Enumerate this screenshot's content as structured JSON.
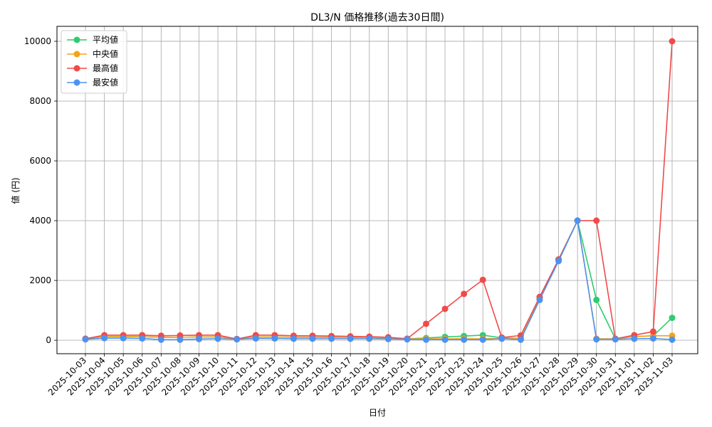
{
  "chart_data": {
    "type": "line",
    "title": "DL3/N 価格推移(過去30日間)",
    "xlabel": "日付",
    "ylabel": "値 (円)",
    "ylim": [
      -450,
      10500
    ],
    "yticks": [
      0,
      2000,
      4000,
      6000,
      8000,
      10000
    ],
    "grid": true,
    "legend_position": "top-left",
    "categories": [
      "2025-10-03",
      "2025-10-04",
      "2025-10-05",
      "2025-10-06",
      "2025-10-07",
      "2025-10-08",
      "2025-10-09",
      "2025-10-10",
      "2025-10-11",
      "2025-10-12",
      "2025-10-13",
      "2025-10-14",
      "2025-10-15",
      "2025-10-16",
      "2025-10-17",
      "2025-10-18",
      "2025-10-19",
      "2025-10-20",
      "2025-10-21",
      "2025-10-22",
      "2025-10-23",
      "2025-10-24",
      "2025-10-25",
      "2025-10-26",
      "2025-10-27",
      "2025-10-28",
      "2025-10-29",
      "2025-10-30",
      "2025-10-31",
      "2025-11-01",
      "2025-11-02",
      "2025-11-03"
    ],
    "series": [
      {
        "name": "平均値",
        "color": "#2ecc71",
        "values": [
          50,
          120,
          120,
          120,
          100,
          100,
          110,
          110,
          40,
          110,
          110,
          100,
          100,
          95,
          90,
          90,
          80,
          50,
          75,
          110,
          140,
          170,
          80,
          60,
          1380,
          2700,
          4000,
          1350,
          50,
          120,
          150,
          750
        ]
      },
      {
        "name": "中央値",
        "color": "#f5a31a",
        "values": [
          50,
          120,
          120,
          120,
          100,
          100,
          110,
          110,
          40,
          110,
          110,
          100,
          100,
          95,
          90,
          90,
          80,
          50,
          50,
          50,
          50,
          50,
          60,
          60,
          1380,
          2700,
          4000,
          50,
          50,
          120,
          150,
          150
        ]
      },
      {
        "name": "最高値",
        "color": "#ef4b4b",
        "values": [
          50,
          170,
          170,
          170,
          150,
          160,
          170,
          170,
          40,
          170,
          170,
          150,
          150,
          140,
          130,
          120,
          100,
          50,
          550,
          1050,
          1550,
          2020,
          90,
          160,
          1450,
          2700,
          4000,
          4000,
          50,
          170,
          290,
          10000
        ]
      },
      {
        "name": "最安値",
        "color": "#4c93f0",
        "values": [
          30,
          70,
          70,
          60,
          20,
          20,
          40,
          50,
          30,
          60,
          60,
          50,
          50,
          50,
          50,
          50,
          40,
          30,
          20,
          20,
          20,
          20,
          50,
          20,
          1350,
          2650,
          4000,
          30,
          30,
          50,
          60,
          20
        ]
      }
    ]
  }
}
